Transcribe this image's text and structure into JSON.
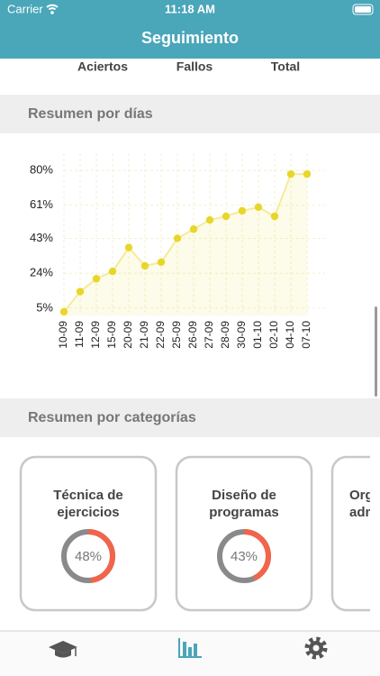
{
  "status_bar": {
    "carrier": "Carrier",
    "time": "11:18 AM"
  },
  "nav": {
    "title": "Seguimiento"
  },
  "stats_header": [
    "Aciertos",
    "Fallos",
    "Total"
  ],
  "sections": [
    "Resumen por días",
    "Resumen por categorías"
  ],
  "chart_data": {
    "type": "line",
    "categories": [
      "10-09",
      "11-09",
      "12-09",
      "15-09",
      "20-09",
      "21-09",
      "22-09",
      "25-09",
      "26-09",
      "27-09",
      "28-09",
      "30-09",
      "01-10",
      "02-10",
      "04-10",
      "07-10"
    ],
    "values": [
      3,
      14,
      21,
      25,
      38,
      28,
      30,
      43,
      48,
      53,
      55,
      58,
      60,
      55,
      78,
      78
    ],
    "color": "#e8d62a",
    "ylim": [
      1,
      82
    ],
    "yticks": [
      {
        "value": 5,
        "label": "5%"
      },
      {
        "value": 24,
        "label": "24%"
      },
      {
        "value": 43,
        "label": "43%"
      },
      {
        "value": 61,
        "label": "61%"
      },
      {
        "value": 80,
        "label": "80%"
      }
    ],
    "grid": true
  },
  "cards": [
    {
      "title_lines": [
        "Técnica de",
        "ejercicios"
      ],
      "value": 48,
      "value_label": "48%"
    },
    {
      "title_lines": [
        "Diseño de",
        "programas"
      ],
      "value": 43,
      "value_label": "43%"
    },
    {
      "title_lines": [
        "Org",
        "adm"
      ]
    }
  ]
}
